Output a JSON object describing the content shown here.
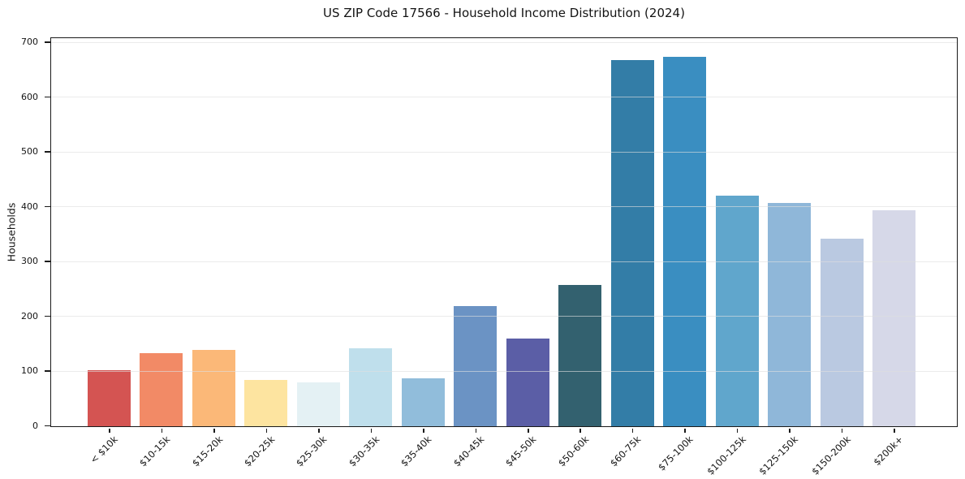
{
  "chart_data": {
    "type": "bar",
    "title": "US ZIP Code 17566 - Household Income Distribution (2024)",
    "xlabel": "",
    "ylabel": "Households",
    "categories": [
      "< $10k",
      "$10-15k",
      "$15-20k",
      "$20-25k",
      "$25-30k",
      "$30-35k",
      "$35-40k",
      "$40-45k",
      "$45-50k",
      "$50-60k",
      "$60-75k",
      "$75-100k",
      "$100-125k",
      "$125-150k",
      "$150-200k",
      "$200k+"
    ],
    "values": [
      103,
      134,
      140,
      84,
      80,
      143,
      87,
      220,
      160,
      258,
      668,
      674,
      421,
      408,
      342,
      394
    ],
    "bar_colors": [
      "#d45452",
      "#f28a66",
      "#fbb878",
      "#fde4a0",
      "#e4f1f4",
      "#bfdfec",
      "#91bddb",
      "#6b93c4",
      "#5b5ea6",
      "#33616f",
      "#337da7",
      "#3a8ec1",
      "#60a6cc",
      "#8fb7d9",
      "#bac9e1",
      "#d6d8e8"
    ],
    "ylim": [
      0,
      707
    ],
    "yticks": [
      0,
      100,
      200,
      300,
      400,
      500,
      600,
      700
    ],
    "x_tick_rotation_deg": 45,
    "grid": "horizontal",
    "legend": "none",
    "spine_color": "#1a1a1a",
    "grid_color": "#dedede",
    "background_color": "#ffffff"
  }
}
